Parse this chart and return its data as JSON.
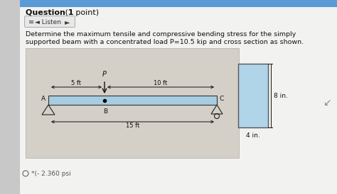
{
  "page_bg": "#e8e8e8",
  "white_bg": "#ffffff",
  "header_bar_color": "#5b9bd5",
  "title": "Question 1",
  "title_suffix": " (1 point)",
  "desc_line1": "Determine the maximum tensile and compressive bending stress for the simply",
  "desc_line2": "supported beam with a concentrated load P=10.5 kip and cross section as shown.",
  "diag_bg": "#d4d0c8",
  "beam_color": "#a8cce0",
  "beam_border": "#333333",
  "cs_color": "#b0d4e8",
  "cs_border": "#555555",
  "label_P": "P",
  "label_A": "A",
  "label_B": "B",
  "label_C": "C",
  "label_5ft": "5 ft",
  "label_10ft": "10 ft",
  "label_15ft": "15 ft",
  "label_8in": "8 in.",
  "label_4in": "4 in.",
  "answer_text": "*(- 2.360 psi"
}
